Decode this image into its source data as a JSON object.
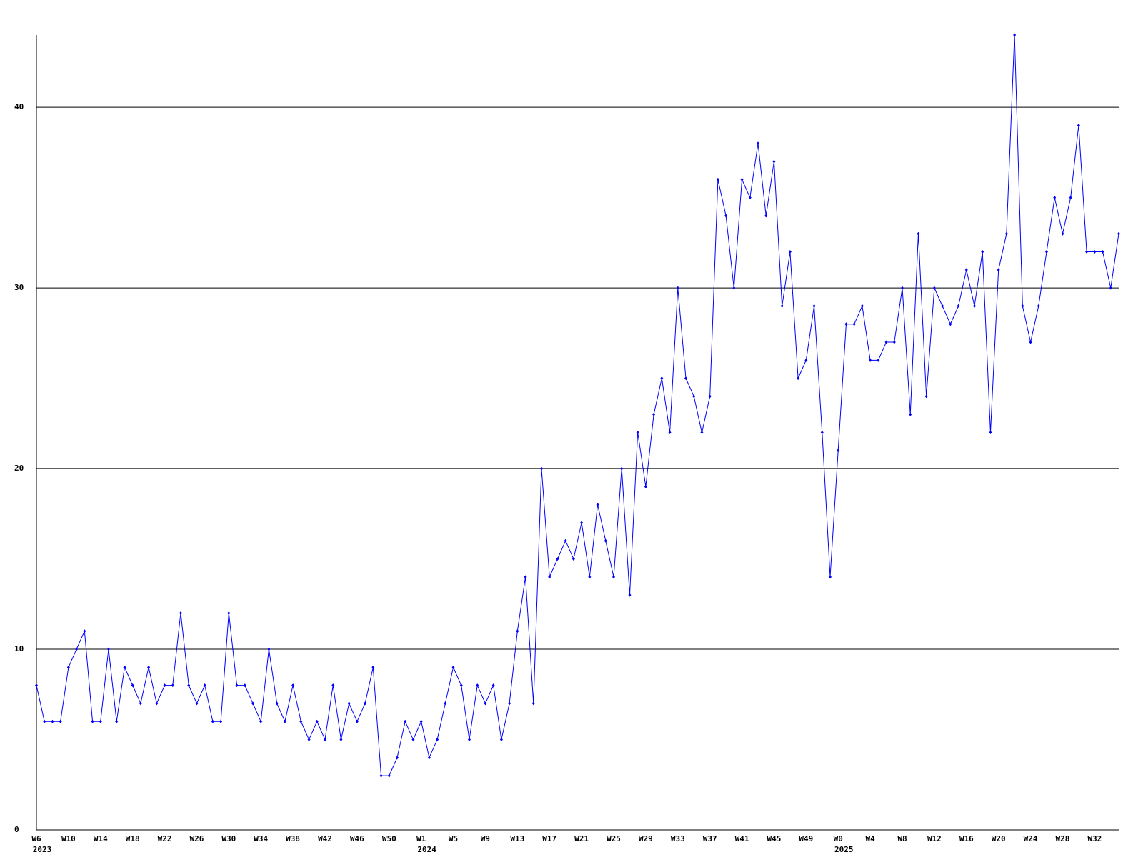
{
  "chart_data": {
    "type": "line",
    "categories": [
      "W6",
      null,
      null,
      null,
      "W10",
      null,
      null,
      null,
      "W14",
      null,
      null,
      null,
      "W18",
      null,
      null,
      null,
      "W22",
      null,
      null,
      null,
      "W26",
      null,
      null,
      null,
      "W30",
      null,
      null,
      null,
      "W34",
      null,
      null,
      null,
      "W38",
      null,
      null,
      null,
      "W42",
      null,
      null,
      null,
      "W46",
      null,
      null,
      null,
      "W50",
      null,
      null,
      null,
      "W1",
      null,
      null,
      null,
      "W5",
      null,
      null,
      null,
      "W9",
      null,
      null,
      null,
      "W13",
      null,
      null,
      null,
      "W17",
      null,
      null,
      null,
      "W21",
      null,
      null,
      null,
      "W25",
      null,
      null,
      null,
      "W29",
      null,
      null,
      null,
      "W33",
      null,
      null,
      null,
      "W37",
      null,
      null,
      null,
      "W41",
      null,
      null,
      null,
      "W45",
      null,
      null,
      null,
      "W49",
      null,
      null,
      null,
      "W0",
      null,
      null,
      null,
      "W4",
      null,
      null,
      null,
      "W8",
      null,
      null,
      null,
      "W12",
      null,
      null,
      null,
      "W16",
      null,
      null,
      null,
      "W20",
      null,
      null,
      null,
      "W24",
      null,
      null,
      null,
      "W28",
      null,
      null,
      null,
      "W32",
      null,
      null,
      null
    ],
    "years": [
      "2023",
      null,
      null,
      null,
      null,
      null,
      null,
      null,
      null,
      null,
      null,
      null,
      null,
      null,
      null,
      null,
      null,
      null,
      null,
      null,
      null,
      null,
      null,
      null,
      null,
      null,
      null,
      null,
      null,
      null,
      null,
      null,
      null,
      null,
      null,
      null,
      null,
      null,
      null,
      null,
      null,
      null,
      null,
      null,
      null,
      null,
      null,
      null,
      "2024",
      null,
      null,
      null,
      null,
      null,
      null,
      null,
      null,
      null,
      null,
      null,
      null,
      null,
      null,
      null,
      null,
      null,
      null,
      null,
      null,
      null,
      null,
      null,
      null,
      null,
      null,
      null,
      null,
      null,
      null,
      null,
      null,
      null,
      null,
      null,
      null,
      null,
      null,
      null,
      null,
      null,
      null,
      null,
      null,
      null,
      null,
      null,
      null,
      null,
      null,
      null,
      "2025",
      null,
      null,
      null,
      null,
      null,
      null,
      null,
      null,
      null,
      null,
      null,
      null,
      null,
      null,
      null,
      null,
      null,
      null,
      null,
      null,
      null,
      null,
      null,
      null,
      null,
      null,
      null,
      null,
      null,
      null,
      null,
      null,
      null,
      null,
      null
    ],
    "series": [
      {
        "color": "#0000ff",
        "values": [
          8,
          6,
          6,
          6,
          9,
          10,
          11,
          6,
          6,
          10,
          6,
          9,
          8,
          7,
          9,
          7,
          8,
          8,
          12,
          8,
          7,
          8,
          6,
          6,
          12,
          8,
          8,
          7,
          6,
          10,
          7,
          6,
          8,
          6,
          5,
          6,
          5,
          8,
          5,
          7,
          6,
          7,
          9,
          3,
          3,
          4,
          6,
          5,
          6,
          4,
          5,
          7,
          9,
          8,
          5,
          8,
          7,
          8,
          5,
          7,
          11,
          14,
          7,
          20,
          14,
          15,
          16,
          15,
          17,
          14,
          18,
          16,
          14,
          20,
          13,
          22,
          19,
          23,
          25,
          22,
          30,
          25,
          24,
          22,
          24,
          36,
          34,
          30,
          36,
          35,
          38,
          34,
          37,
          29,
          32,
          25,
          26,
          29,
          22,
          14,
          21,
          28,
          28,
          29,
          26,
          26,
          27,
          27,
          30,
          23,
          33,
          24,
          30,
          29,
          28,
          29,
          31,
          29,
          32,
          22,
          31,
          33,
          44,
          29,
          27,
          29,
          32,
          35,
          33,
          35,
          39,
          32,
          32,
          32,
          30,
          33
        ]
      }
    ],
    "ylim": [
      0,
      44
    ],
    "yticks": [
      0,
      10,
      20,
      30,
      40
    ],
    "grid": true
  }
}
